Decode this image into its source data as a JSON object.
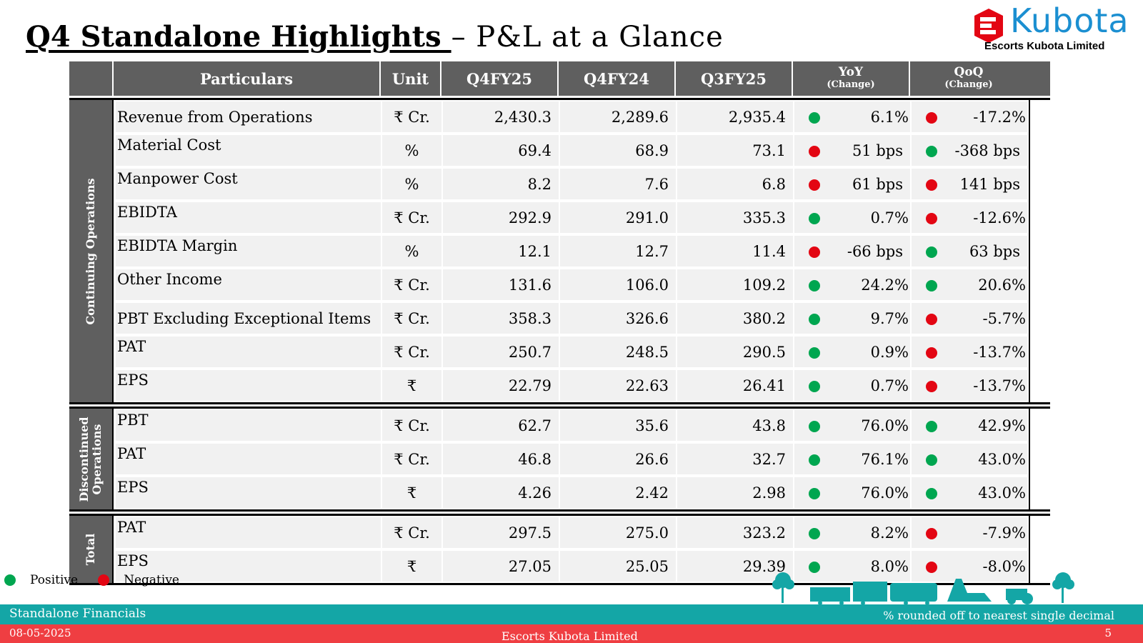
{
  "title": {
    "bold": "Q4 Standalone Highlights ",
    "rest": "– P&L at a Glance"
  },
  "logo": {
    "brand": "Kubota",
    "company": "Escorts Kubota Limited"
  },
  "columns": {
    "particulars": "Particulars",
    "unit": "Unit",
    "q4fy25": "Q4FY25",
    "q4fy24": "Q4FY24",
    "q3fy25": "Q3FY25",
    "yoy": "YoY",
    "yoy_sub": "(Change)",
    "qoq": "QoQ",
    "qoq_sub": "(Change)"
  },
  "groups": [
    {
      "label": "Continuing Operations",
      "rows": [
        {
          "name": "Revenue from Operations",
          "unit": "₹ Cr.",
          "q4fy25": "2,430.3",
          "q4fy24": "2,289.6",
          "q3fy25": "2,935.4",
          "yoy": "6.1%",
          "yoy_sign": "positive",
          "qoq": "-17.2%",
          "qoq_sign": "negative"
        },
        {
          "name": "Material Cost",
          "unit": "%",
          "q4fy25": "69.4",
          "q4fy24": "68.9",
          "q3fy25": "73.1",
          "yoy": "51 bps",
          "yoy_sign": "negative",
          "qoq": "-368 bps",
          "qoq_sign": "positive"
        },
        {
          "name": "Manpower Cost",
          "unit": "%",
          "q4fy25": "8.2",
          "q4fy24": "7.6",
          "q3fy25": "6.8",
          "yoy": "61 bps",
          "yoy_sign": "negative",
          "qoq": "141 bps",
          "qoq_sign": "negative"
        },
        {
          "name": "EBIDTA",
          "unit": "₹ Cr.",
          "q4fy25": "292.9",
          "q4fy24": "291.0",
          "q3fy25": "335.3",
          "yoy": "0.7%",
          "yoy_sign": "positive",
          "qoq": "-12.6%",
          "qoq_sign": "negative"
        },
        {
          "name": "EBIDTA Margin",
          "unit": "%",
          "q4fy25": "12.1",
          "q4fy24": "12.7",
          "q3fy25": "11.4",
          "yoy": "-66 bps",
          "yoy_sign": "negative",
          "qoq": "63 bps",
          "qoq_sign": "positive"
        },
        {
          "name": "Other Income",
          "unit": "₹ Cr.",
          "q4fy25": "131.6",
          "q4fy24": "106.0",
          "q3fy25": "109.2",
          "yoy": "24.2%",
          "yoy_sign": "positive",
          "qoq": "20.6%",
          "qoq_sign": "positive"
        },
        {
          "name": "PBT Excluding Exceptional Items",
          "unit": "₹ Cr.",
          "q4fy25": "358.3",
          "q4fy24": "326.6",
          "q3fy25": "380.2",
          "yoy": "9.7%",
          "yoy_sign": "positive",
          "qoq": "-5.7%",
          "qoq_sign": "negative"
        },
        {
          "name": "PAT",
          "unit": "₹ Cr.",
          "q4fy25": "250.7",
          "q4fy24": "248.5",
          "q3fy25": "290.5",
          "yoy": "0.9%",
          "yoy_sign": "positive",
          "qoq": "-13.7%",
          "qoq_sign": "negative"
        },
        {
          "name": "EPS",
          "unit": "₹",
          "q4fy25": "22.79",
          "q4fy24": "22.63",
          "q3fy25": "26.41",
          "yoy": "0.7%",
          "yoy_sign": "positive",
          "qoq": "-13.7%",
          "qoq_sign": "negative"
        }
      ]
    },
    {
      "label": "Discontinued Operations",
      "label_line1": "Discontinued",
      "label_line2": "Operations",
      "rows": [
        {
          "name": "PBT",
          "unit": "₹ Cr.",
          "q4fy25": "62.7",
          "q4fy24": "35.6",
          "q3fy25": "43.8",
          "yoy": "76.0%",
          "yoy_sign": "positive",
          "qoq": "42.9%",
          "qoq_sign": "positive"
        },
        {
          "name": "PAT",
          "unit": "₹ Cr.",
          "q4fy25": "46.8",
          "q4fy24": "26.6",
          "q3fy25": "32.7",
          "yoy": "76.1%",
          "yoy_sign": "positive",
          "qoq": "43.0%",
          "qoq_sign": "positive"
        },
        {
          "name": "EPS",
          "unit": "₹",
          "q4fy25": "4.26",
          "q4fy24": "2.42",
          "q3fy25": "2.98",
          "yoy": "76.0%",
          "yoy_sign": "positive",
          "qoq": "43.0%",
          "qoq_sign": "positive"
        }
      ]
    },
    {
      "label": "Total",
      "rows": [
        {
          "name": "PAT",
          "unit": "₹ Cr.",
          "q4fy25": "297.5",
          "q4fy24": "275.0",
          "q3fy25": "323.2",
          "yoy": "8.2%",
          "yoy_sign": "positive",
          "qoq": "-7.9%",
          "qoq_sign": "negative"
        },
        {
          "name": "EPS",
          "unit": "₹",
          "q4fy25": "27.05",
          "q4fy24": "25.05",
          "q3fy25": "29.39",
          "yoy": "8.0%",
          "yoy_sign": "positive",
          "qoq": "-8.0%",
          "qoq_sign": "negative"
        }
      ]
    }
  ],
  "legend": {
    "positive": "Positive",
    "negative": "Negative"
  },
  "colors": {
    "positive": "#00a650",
    "negative": "#e30613",
    "header": "#5f5f5f",
    "teal": "#14a6a6",
    "red": "#ef3e42",
    "brand": "#1b8fd1",
    "logo_red": "#e30613"
  },
  "footer": {
    "section": "Standalone Financials",
    "note": "% rounded off to nearest single decimal",
    "date": "08-05-2025",
    "company": "Escorts Kubota Limited",
    "page": "5"
  }
}
